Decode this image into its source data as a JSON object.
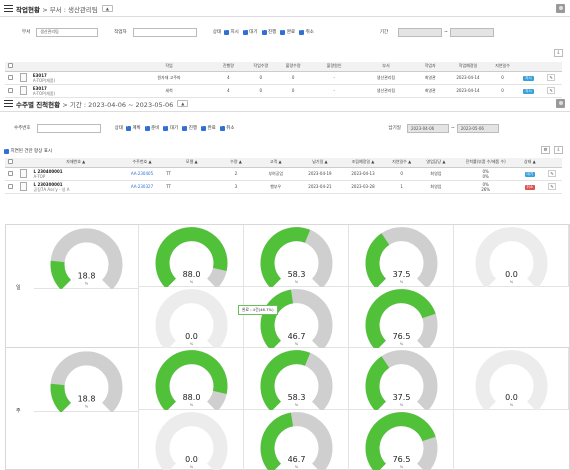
{
  "section1": {
    "title": "작업현황",
    "breadcrumb": "> 부서 : 생산관리팀",
    "collapse_icon": "▲",
    "filters": {
      "dept_label": "부서",
      "dept_value": "생산관리팀",
      "worker_label": "작업자",
      "worker_value": "",
      "status_label": "상태",
      "status_options": [
        "지시",
        "대기",
        "진행",
        "완료",
        "취소"
      ],
      "period_label": "기간",
      "period_sep": "~"
    },
    "table": {
      "headers": [
        "",
        "",
        "",
        "작업",
        "진행량",
        "작업수량",
        "불량수량",
        "불량원인",
        "부서",
        "작업자",
        "작업예정일",
        "지연일수",
        "",
        ""
      ],
      "rows": [
        {
          "code": "E3017",
          "name": "A-TOP(재품)",
          "work": "원자재 고주파",
          "progress": "4",
          "qty": "0",
          "defect": "0",
          "cause": "-",
          "dept": "생산관리팀",
          "worker": "최영관",
          "date": "2023-04-14",
          "delay": "0",
          "status": "지시"
        },
        {
          "code": "E3017",
          "name": "A-TOP(재품)",
          "work": "세척",
          "progress": "4",
          "qty": "0",
          "defect": "0",
          "cause": "-",
          "dept": "생산관리팀",
          "worker": "최영관",
          "date": "2023-04-14",
          "delay": "0",
          "status": "지시"
        }
      ]
    }
  },
  "section2": {
    "title": "수주별 진척현황",
    "breadcrumb": "> 기간 : 2023-04-06 ~ 2023-05-06",
    "collapse_icon": "▲",
    "filters": {
      "order_label": "수주번호",
      "order_value": "",
      "status_label": "상태",
      "status_options": [
        "계획",
        "준비",
        "대기",
        "진행",
        "완료",
        "취소"
      ],
      "due_label": "납기일",
      "due_from": "2023-04-06",
      "due_sep": "~",
      "due_to": "2023-05-06",
      "delay_only_label": "지연된 건만 항상 표시"
    },
    "table": {
      "headers": [
        "",
        "",
        "자재번호 ▲",
        "수주번호 ▲",
        "모델 ▲",
        "수량 ▲",
        "고객 ▲",
        "납기일 ▲",
        "조립예정일 ▲",
        "지연일수 ▲",
        "영업담당 ▲",
        "진척률(부품 수/제품 수)",
        "상태 ▲",
        ""
      ],
      "rows": [
        {
          "code": "L 230400001",
          "name": "A-TOP",
          "order": "AA-230405",
          "model": "TT",
          "qty": "2",
          "customer": "부여공업",
          "due": "2023-04-19",
          "assy": "2023-04-13",
          "delay": "0",
          "sales": "최영업",
          "pct1": "0%",
          "pct2": "0%",
          "status": "대기",
          "status_color": "#3aa0d8"
        },
        {
          "code": "L 230300001",
          "name": "공장7A Ass'y - 성 A",
          "order": "AA-230327",
          "model": "TT",
          "qty": "3",
          "customer": "행부우",
          "due": "2023-04-21",
          "assy": "2023-03-28",
          "delay": "1",
          "sales": "최영업",
          "pct1": "0%",
          "pct2": "26%",
          "status": "취소",
          "status_color": "#d9534f"
        }
      ]
    }
  },
  "dashboard": {
    "rows": [
      {
        "label": "일",
        "summary": {
          "title": "일간 종합실적",
          "value": "18.8",
          "unit": "%",
          "fraction": 0.188
        },
        "gauges": [
          {
            "title": "영업",
            "value": "88.0",
            "unit": "%",
            "fraction": 0.88
          },
          {
            "title": "생산/구매",
            "value": "58.3",
            "unit": "%",
            "fraction": 0.583
          },
          {
            "title": "선반",
            "value": "37.5",
            "unit": "%",
            "fraction": 0.375
          },
          {
            "title": "연구소",
            "value": "0.0",
            "unit": "%",
            "fraction": 0.0
          },
          {
            "title": "영업",
            "value": "0.0",
            "unit": "%",
            "fraction": 0.0
          },
          {
            "title": "조립",
            "value": "46.7",
            "unit": "%",
            "fraction": 0.467
          },
          {
            "title": "용접",
            "value": "76.5",
            "unit": "%",
            "fraction": 0.765
          }
        ],
        "tooltip": "완료 : 4건(46.7%)"
      },
      {
        "label": "주",
        "summary": {
          "title": "주간 종합실적",
          "value": "18.8",
          "unit": "%",
          "fraction": 0.188
        },
        "gauges": [
          {
            "title": "영업",
            "value": "88.0",
            "unit": "%",
            "fraction": 0.88
          },
          {
            "title": "생산/구매",
            "value": "58.3",
            "unit": "%",
            "fraction": 0.583
          },
          {
            "title": "선반",
            "value": "37.5",
            "unit": "%",
            "fraction": 0.375
          },
          {
            "title": "연구소",
            "value": "0.0",
            "unit": "%",
            "fraction": 0.0
          },
          {
            "title": "영업",
            "value": "0.0",
            "unit": "%",
            "fraction": 0.0
          },
          {
            "title": "조립",
            "value": "46.7",
            "unit": "%",
            "fraction": 0.467
          },
          {
            "title": "용접",
            "value": "76.5",
            "unit": "%",
            "fraction": 0.765
          }
        ]
      }
    ],
    "colors": {
      "fill": "#52c13a",
      "track": "#cfcfcf",
      "empty_track": "#ececec"
    }
  }
}
